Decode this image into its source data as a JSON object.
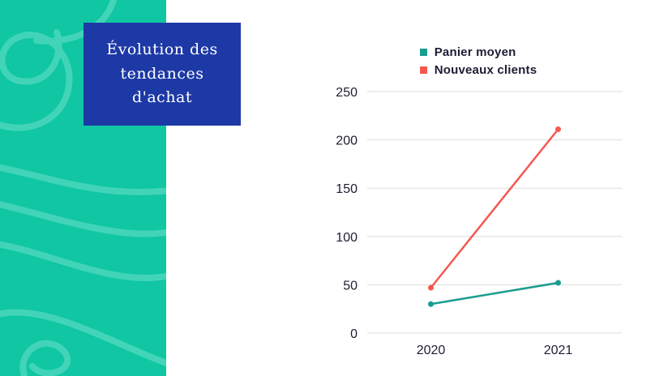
{
  "slide": {
    "title": "Évolution des tendances d'achat"
  },
  "chart_data": {
    "type": "line",
    "title": "",
    "categories": [
      "2020",
      "2021"
    ],
    "series": [
      {
        "name": "Panier moyen",
        "color": "#1A9C8F",
        "values": [
          30,
          52
        ]
      },
      {
        "name": "Nouveaux clients",
        "color": "#F4594F",
        "values": [
          47,
          211
        ]
      }
    ],
    "ylim": [
      0,
      250
    ],
    "ytick_step": 50,
    "ytick_labels": [
      "0",
      "50",
      "100",
      "150",
      "200",
      "250"
    ],
    "grid": true,
    "legend_position": "top-center"
  },
  "colors": {
    "background": "#FFFFFF",
    "panel_bg": "#10C6A3",
    "swirl": "#53D9BF",
    "title_bg": "#1D39A6",
    "title_text": "#FFFFFF",
    "grid_line": "#DEDEDE",
    "axis_text": "#1D1D35"
  }
}
